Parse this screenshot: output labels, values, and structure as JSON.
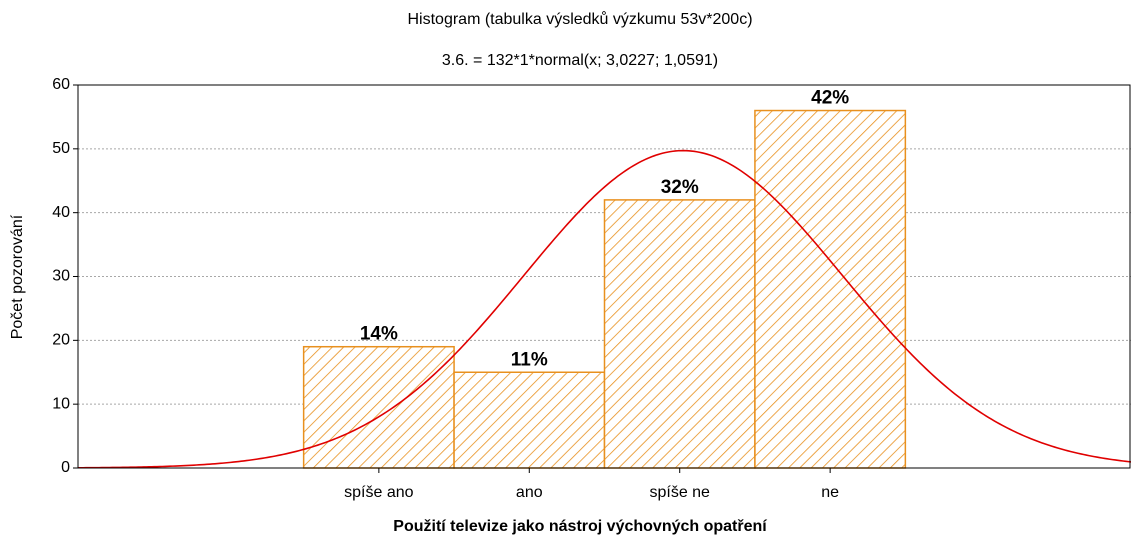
{
  "chart_data": {
    "type": "histogram",
    "title": "Histogram (tabulka výsledků výzkumu 53v*200c)",
    "subtitle": "3.6. = 132*1*normal(x; 3,0227; 1,0591)",
    "x_label": "Použití televize jako nástroj výchovných opatření",
    "y_label": "Počet pozorování",
    "categories": [
      "spíše ano",
      "ano",
      "spíše ne",
      "ne"
    ],
    "bins": [
      0.5,
      1.5,
      2.5,
      3.5,
      4.5
    ],
    "values": [
      19,
      15,
      42,
      56
    ],
    "percent_labels": [
      "14%",
      "11%",
      "32%",
      "42%"
    ],
    "color": "#e8901e",
    "fit": {
      "n": 132,
      "bin_width": 1,
      "mean": 3.0227,
      "sd": 1.0591,
      "color": "#e00000"
    },
    "xlim": [
      -1,
      6
    ],
    "ylim": [
      0,
      60
    ],
    "yticks": [
      0,
      10,
      20,
      30,
      40,
      50,
      60
    ],
    "grid": true
  }
}
